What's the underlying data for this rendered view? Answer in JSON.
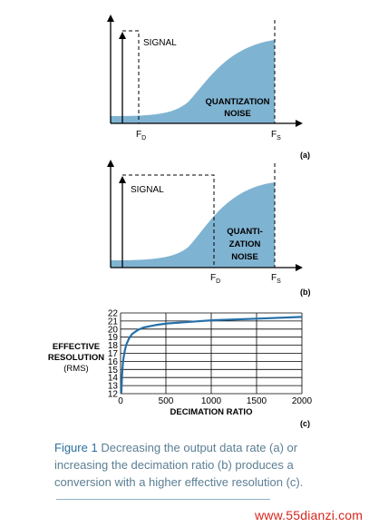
{
  "panel_a": {
    "signal_label": "SIGNAL",
    "noise_line1": "QUANTIZATION",
    "noise_line2": "NOISE",
    "fd_main": "F",
    "fd_sub": "D",
    "fs_main": "F",
    "fs_sub": "S",
    "tag": "(a)"
  },
  "panel_b": {
    "signal_label": "SIGNAL",
    "noise_line1": "QUANTI-",
    "noise_line2": "ZATION",
    "noise_line3": "NOISE",
    "fd_main": "F",
    "fd_sub": "D",
    "fs_main": "F",
    "fs_sub": "S",
    "tag": "(b)"
  },
  "panel_c": {
    "ylabel_line1": "EFFECTIVE",
    "ylabel_line2": "RESOLUTION",
    "ylabel_line3": "(RMS)",
    "xlabel": "DECIMATION RATIO",
    "tag": "(c)"
  },
  "chart_data": {
    "type": "line",
    "xlabel": "DECIMATION RATIO",
    "ylabel": "EFFECTIVE RESOLUTION (RMS)",
    "xlim": [
      0,
      2000
    ],
    "ylim": [
      12,
      22
    ],
    "xticks": [
      0,
      500,
      1000,
      1500,
      2000
    ],
    "yticks": [
      12,
      13,
      14,
      15,
      16,
      17,
      18,
      19,
      20,
      21,
      22
    ],
    "grid": true,
    "series": [
      {
        "color": "#2470a8",
        "x": [
          8,
          16,
          24,
          32,
          48,
          64,
          96,
          128,
          192,
          256,
          384,
          512,
          768,
          1024,
          1536,
          2000
        ],
        "y": [
          12.0,
          14.2,
          15.6,
          16.4,
          17.4,
          18.1,
          18.9,
          19.4,
          19.9,
          20.2,
          20.5,
          20.7,
          20.9,
          21.1,
          21.3,
          21.5
        ]
      }
    ]
  },
  "caption": {
    "figure_label": "Figure 1",
    "text": "Decreasing the output data rate (a) or increasing the decimation ratio (b) produces a conversion with a higher effective resolution (c)."
  },
  "watermark": "www.55dianzi.com",
  "colors": {
    "noise_fill": "#7fb3d2",
    "curve": "#2470a8",
    "caption_text": "#5b7e93",
    "watermark": "#d8251c"
  }
}
